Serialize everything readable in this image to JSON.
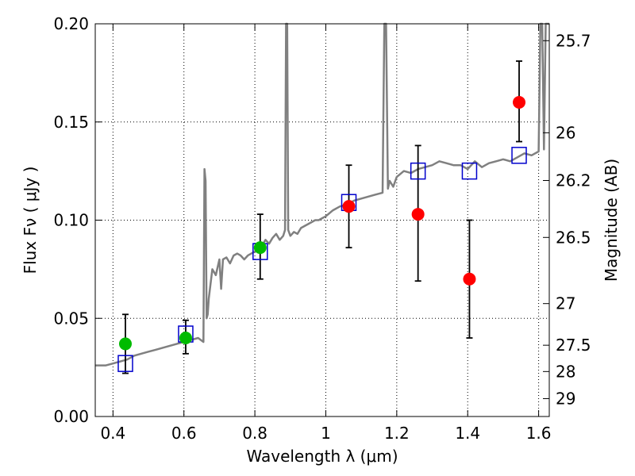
{
  "chart_data": {
    "type": "scatter",
    "xlabel": "Wavelength  λ (μm)",
    "ylabel": "Flux  Fν  ( μJy )",
    "y2label": "Magnitude (AB)",
    "xlim": [
      0.35,
      1.63
    ],
    "ylim": [
      0.0,
      0.2
    ],
    "grid": true,
    "x_ticks": [
      {
        "value": 0.4,
        "label": "0.4"
      },
      {
        "value": 0.6,
        "label": "0.6"
      },
      {
        "value": 0.8,
        "label": "0.8"
      },
      {
        "value": 1.0,
        "label": "1"
      },
      {
        "value": 1.2,
        "label": "1.2"
      },
      {
        "value": 1.4,
        "label": "1.4"
      },
      {
        "value": 1.6,
        "label": "1.6"
      }
    ],
    "y_ticks": [
      {
        "value": 0.0,
        "label": "0.00"
      },
      {
        "value": 0.05,
        "label": "0.05"
      },
      {
        "value": 0.1,
        "label": "0.10"
      },
      {
        "value": 0.15,
        "label": "0.15"
      },
      {
        "value": 0.2,
        "label": "0.20"
      }
    ],
    "y2_ticks": [
      {
        "flux": 0.1914,
        "label": "25.7"
      },
      {
        "flux": 0.1445,
        "label": "26"
      },
      {
        "flux": 0.1202,
        "label": "26.2"
      },
      {
        "flux": 0.0912,
        "label": "26.5"
      },
      {
        "flux": 0.0575,
        "label": "27"
      },
      {
        "flux": 0.0363,
        "label": "27.5"
      },
      {
        "flux": 0.0229,
        "label": "28"
      },
      {
        "flux": 0.0091,
        "label": "29"
      }
    ],
    "colors": {
      "spectrum": "#808080",
      "green_points": "#00bb00",
      "red_points": "#ff0000",
      "model_squares": "#0000cc",
      "error_bars": "#000000"
    },
    "series": [
      {
        "name": "template_spectrum",
        "type": "line",
        "x": [
          0.35,
          0.38,
          0.4,
          0.42,
          0.44,
          0.46,
          0.48,
          0.5,
          0.52,
          0.54,
          0.56,
          0.58,
          0.6,
          0.62,
          0.64,
          0.655,
          0.658,
          0.661,
          0.664,
          0.667,
          0.67,
          0.68,
          0.69,
          0.7,
          0.705,
          0.71,
          0.72,
          0.73,
          0.74,
          0.75,
          0.76,
          0.77,
          0.78,
          0.79,
          0.8,
          0.81,
          0.82,
          0.83,
          0.84,
          0.85,
          0.86,
          0.87,
          0.88,
          0.885,
          0.888,
          0.891,
          0.894,
          0.9,
          0.91,
          0.92,
          0.93,
          0.94,
          0.95,
          0.96,
          0.97,
          0.98,
          0.99,
          1.0,
          1.02,
          1.04,
          1.06,
          1.08,
          1.1,
          1.12,
          1.14,
          1.16,
          1.165,
          1.17,
          1.175,
          1.18,
          1.19,
          1.2,
          1.22,
          1.24,
          1.26,
          1.28,
          1.3,
          1.32,
          1.34,
          1.36,
          1.38,
          1.4,
          1.42,
          1.44,
          1.46,
          1.48,
          1.5,
          1.52,
          1.54,
          1.56,
          1.58,
          1.6,
          1.605,
          1.61,
          1.615,
          1.62,
          1.63
        ],
        "y": [
          0.026,
          0.026,
          0.027,
          0.028,
          0.029,
          0.031,
          0.032,
          0.033,
          0.034,
          0.035,
          0.036,
          0.037,
          0.038,
          0.039,
          0.04,
          0.038,
          0.126,
          0.12,
          0.05,
          0.052,
          0.06,
          0.075,
          0.072,
          0.08,
          0.065,
          0.08,
          0.081,
          0.078,
          0.082,
          0.083,
          0.082,
          0.08,
          0.082,
          0.083,
          0.084,
          0.085,
          0.087,
          0.09,
          0.088,
          0.091,
          0.093,
          0.09,
          0.092,
          0.095,
          0.2,
          0.2,
          0.095,
          0.092,
          0.094,
          0.093,
          0.096,
          0.097,
          0.098,
          0.099,
          0.1,
          0.1,
          0.101,
          0.102,
          0.105,
          0.107,
          0.108,
          0.11,
          0.111,
          0.112,
          0.113,
          0.114,
          0.2,
          0.2,
          0.116,
          0.12,
          0.117,
          0.122,
          0.125,
          0.124,
          0.126,
          0.127,
          0.128,
          0.13,
          0.129,
          0.128,
          0.128,
          0.126,
          0.13,
          0.127,
          0.129,
          0.13,
          0.131,
          0.13,
          0.132,
          0.134,
          0.133,
          0.135,
          0.2,
          0.2,
          0.136,
          0.2,
          0.2
        ]
      },
      {
        "name": "green_photometry",
        "type": "scatter",
        "x": [
          0.435,
          0.605,
          0.815
        ],
        "y": [
          0.037,
          0.04,
          0.086
        ],
        "err_low": [
          0.022,
          0.032,
          0.07
        ],
        "err_high": [
          0.052,
          0.049,
          0.103
        ]
      },
      {
        "name": "red_photometry",
        "type": "scatter",
        "x": [
          1.065,
          1.26,
          1.405,
          1.545
        ],
        "y": [
          0.107,
          0.103,
          0.07,
          0.16
        ],
        "err_low": [
          0.086,
          0.069,
          0.04,
          0.14
        ],
        "err_high": [
          0.128,
          0.138,
          0.1,
          0.181
        ]
      },
      {
        "name": "model_synthetic_photometry",
        "type": "scatter",
        "marker": "square",
        "x": [
          0.435,
          0.605,
          0.815,
          1.065,
          1.26,
          1.405,
          1.545
        ],
        "y": [
          0.027,
          0.042,
          0.084,
          0.109,
          0.125,
          0.125,
          0.133
        ]
      }
    ]
  }
}
